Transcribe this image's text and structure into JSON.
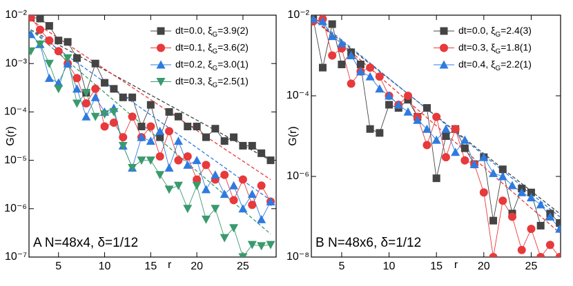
{
  "chart_data": [
    {
      "type": "line",
      "log_y": true,
      "ylabel": "G(r)",
      "xlabel": "r",
      "annotation": "A N=48x4, δ=1/12",
      "xlim": [
        1.8,
        28.6
      ],
      "xticks": [
        5,
        10,
        15,
        20,
        25
      ],
      "ylim": [
        1e-07,
        0.01
      ],
      "yticks": [
        {
          "value": 1e-07,
          "label": "10⁻⁷"
        },
        {
          "value": 1e-06,
          "label": "10⁻⁶"
        },
        {
          "value": 1e-05,
          "label": "10⁻⁵"
        },
        {
          "value": 0.0001,
          "label": "10⁻⁴"
        },
        {
          "value": 0.001,
          "label": "10⁻³"
        },
        {
          "value": 0.01,
          "label": "10⁻²"
        }
      ],
      "x": [
        2,
        3,
        4,
        5,
        6,
        7,
        8,
        9,
        10,
        11,
        12,
        13,
        14,
        15,
        16,
        17,
        18,
        19,
        20,
        21,
        22,
        23,
        24,
        25,
        26,
        27,
        28
      ],
      "fit_x": [
        2,
        28
      ],
      "series": [
        {
          "name": "dt=0.0, ξG=3.9(2)",
          "color": "#444444",
          "marker": "square",
          "values": [
            0.009,
            0.0085,
            0.006,
            0.003,
            0.0028,
            0.0013,
            0.00025,
            0.001,
            0.0004,
            0.0003,
            0.0002,
            0.0002,
            5e-05,
            0.00014,
            3e-05,
            0.0001,
            8e-05,
            5e-05,
            5e-05,
            3e-05,
            4.5e-05,
            2.5e-05,
            3e-05,
            2e-05,
            2e-05,
            1.4e-05,
            1e-05
          ],
          "fit": [
            0.005,
            1e-05
          ]
        },
        {
          "name": "dt=0.1, ξG=3.6(2)",
          "color": "#e8393b",
          "marker": "circle",
          "values": [
            0.009,
            0.005,
            0.003,
            0.0018,
            0.001,
            0.0005,
            0.00015,
            0.0003,
            5e-05,
            6e-05,
            3e-05,
            8e-05,
            3e-05,
            5e-05,
            1.2e-05,
            4e-05,
            1e-05,
            1.2e-05,
            4e-06,
            8e-06,
            4e-06,
            5e-06,
            1.5e-06,
            4e-06,
            1.2e-06,
            3e-06,
            1.4e-06
          ],
          "fit": [
            0.008,
            4e-06
          ]
        },
        {
          "name": "dt=0.2, ξG=3.0(1)",
          "color": "#2e7be0",
          "marker": "triangle-up",
          "values": [
            0.004,
            0.0025,
            0.0005,
            0.0004,
            0.001,
            0.0003,
            8e-05,
            0.0002,
            0.0001,
            0.00012,
            2e-05,
            7e-06,
            3e-05,
            2.5e-05,
            4e-05,
            7e-06,
            2.5e-05,
            8e-06,
            1e-05,
            2.5e-06,
            5e-06,
            2e-06,
            3e-06,
            1e-06,
            2e-06,
            6e-07,
            1.4e-06
          ],
          "fit": [
            0.005,
            1.5e-06
          ]
        },
        {
          "name": "dt=0.3, ξG=2.5(1)",
          "color": "#3a9a6e",
          "marker": "triangle-down",
          "values": [
            0.0018,
            0.0025,
            0.001,
            0.0003,
            0.0013,
            0.00015,
            0.00025,
            8e-05,
            9e-05,
            0.0001,
            2e-05,
            7e-06,
            1e-05,
            1e-05,
            5e-06,
            2.5e-06,
            3e-06,
            1e-06,
            3e-06,
            6e-07,
            1e-06,
            2.5e-07,
            4e-07,
            1e-07,
            1.8e-07,
            1.7e-07,
            1.8e-07
          ],
          "fit": [
            0.005,
            3e-07
          ]
        }
      ]
    },
    {
      "type": "line",
      "log_y": true,
      "ylabel": "G(r)",
      "xlabel": "r",
      "annotation": "B N=48x6, δ=1/12",
      "xlim": [
        1.8,
        28.1
      ],
      "xticks": [
        5,
        10,
        15,
        20,
        25
      ],
      "ylim": [
        1e-08,
        0.01
      ],
      "yticks": [
        {
          "value": 1e-08,
          "label": "10⁻⁸"
        },
        {
          "value": 1e-06,
          "label": "10⁻⁶"
        },
        {
          "value": 0.0001,
          "label": "10⁻⁴"
        },
        {
          "value": 0.01,
          "label": "10⁻²"
        }
      ],
      "x": [
        2,
        3,
        4,
        5,
        6,
        7,
        8,
        9,
        10,
        11,
        12,
        13,
        14,
        15,
        16,
        17,
        18,
        19,
        20,
        21,
        22,
        23,
        24,
        25,
        26,
        27,
        28
      ],
      "fit_x": [
        2,
        28
      ],
      "series": [
        {
          "name": "dt=0.0, ξG=2.4(3)",
          "color": "#444444",
          "marker": "square",
          "values": [
            0.008,
            0.0005,
            0.006,
            0.0006,
            0.0012,
            0.0006,
            1.5e-05,
            1.2e-05,
            6e-05,
            5e-05,
            8e-05,
            3e-05,
            5e-05,
            9e-07,
            1e-05,
            1.5e-05,
            5e-06,
            2e-06,
            3e-06,
            8e-08,
            1.5e-06,
            1.2e-07,
            5e-07,
            4e-07,
            6e-08,
            1.2e-07,
            7e-08
          ],
          "fit": [
            0.008,
            1.2e-07
          ]
        },
        {
          "name": "dt=0.3, ξG=1.8(1)",
          "color": "#e8393b",
          "marker": "circle",
          "values": [
            0.007,
            0.008,
            0.001,
            0.0015,
            0.0002,
            0.0004,
            0.0005,
            0.0003,
            0.0001,
            6e-05,
            0.0001,
            3e-05,
            6e-06,
            3e-05,
            3e-06,
            1.5e-05,
            2.5e-06,
            2e-06,
            4e-07,
            1e-08,
            2.5e-07,
            1e-07,
            1.5e-08,
            5e-08,
            1e-08,
            2e-08,
            1e-08
          ],
          "fit": [
            0.008,
            4e-08
          ]
        },
        {
          "name": "dt=0.4, ξG=2.2(1)",
          "color": "#2e7be0",
          "marker": "triangle-up",
          "values": [
            0.008,
            0.007,
            0.003,
            0.002,
            0.001,
            0.0004,
            0.0003,
            0.00015,
            0.0001,
            6e-05,
            4e-05,
            2.5e-05,
            1.5e-05,
            8e-06,
            1.5e-05,
            4e-06,
            8e-06,
            2e-06,
            3e-06,
            1.2e-06,
            1e-06,
            6e-07,
            4e-07,
            3e-07,
            2e-07,
            1e-07,
            5e-08
          ],
          "fit": [
            0.009,
            1e-07
          ]
        }
      ]
    }
  ]
}
